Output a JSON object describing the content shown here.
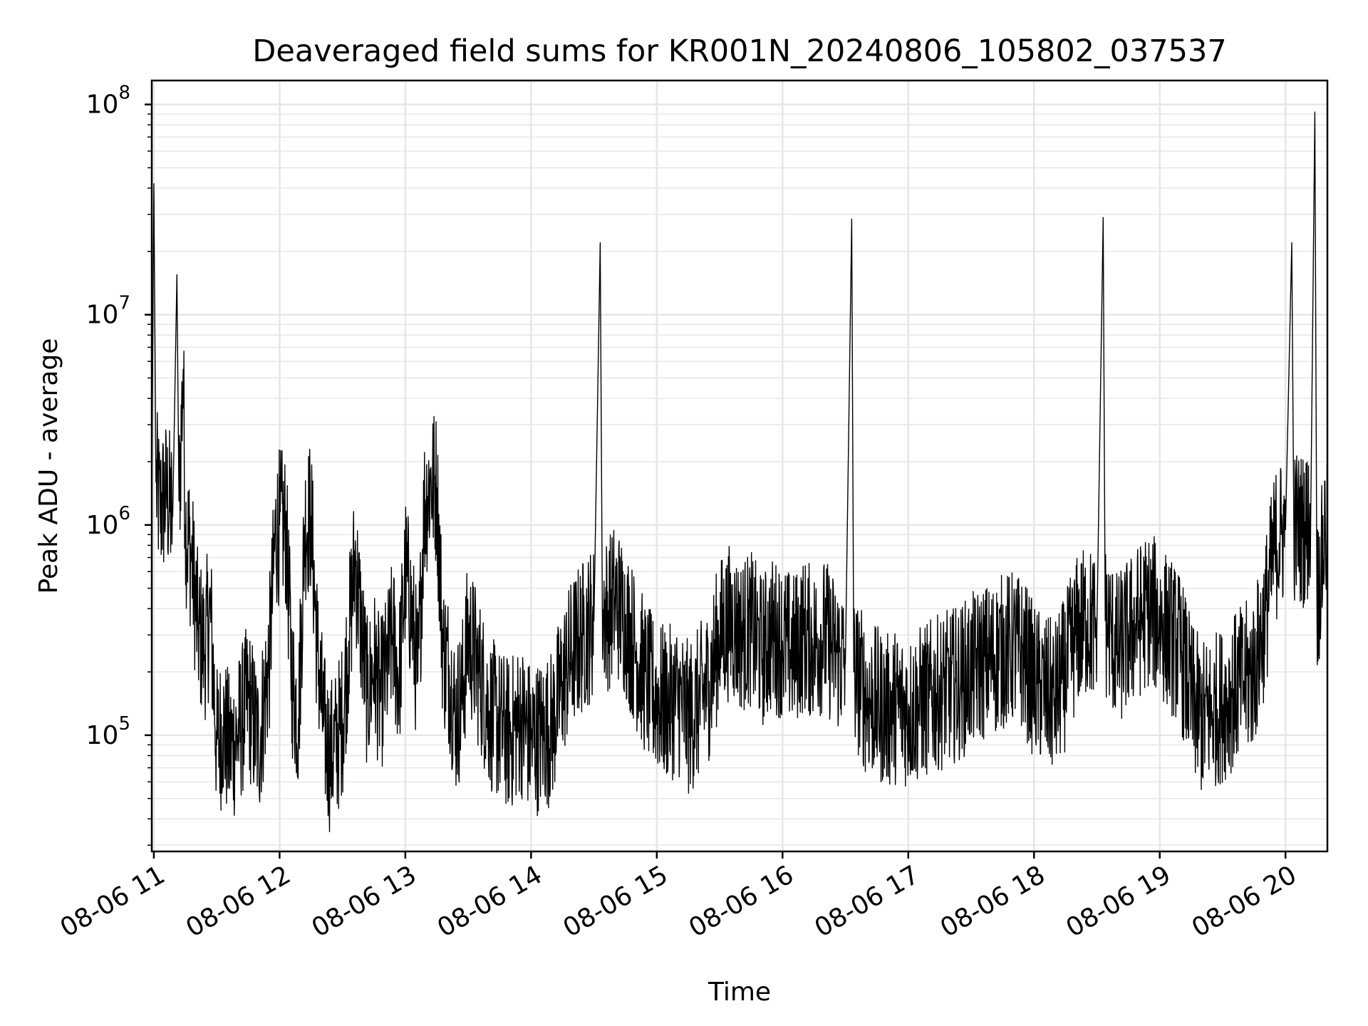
{
  "chart_data": {
    "type": "line",
    "title": "Deaveraged field sums for KR001N_20240806_105802_037537",
    "xlabel": "Time",
    "ylabel": "Peak ADU - average",
    "yscale": "log",
    "ylim": [
      28000,
      130000000
    ],
    "xlim": [
      "08-06 10:59",
      "08-06 20:20"
    ],
    "xticks": [
      {
        "time": "08-06 11:00",
        "label": "08-06 11"
      },
      {
        "time": "08-06 12:00",
        "label": "08-06 12"
      },
      {
        "time": "08-06 13:00",
        "label": "08-06 13"
      },
      {
        "time": "08-06 14:00",
        "label": "08-06 14"
      },
      {
        "time": "08-06 15:00",
        "label": "08-06 15"
      },
      {
        "time": "08-06 16:00",
        "label": "08-06 16"
      },
      {
        "time": "08-06 17:00",
        "label": "08-06 17"
      },
      {
        "time": "08-06 18:00",
        "label": "08-06 18"
      },
      {
        "time": "08-06 19:00",
        "label": "08-06 19"
      },
      {
        "time": "08-06 20:00",
        "label": "08-06 20"
      }
    ],
    "yticks": [
      {
        "value": 100000,
        "base": "10",
        "exp": "5"
      },
      {
        "value": 1000000,
        "base": "10",
        "exp": "6"
      },
      {
        "value": 10000000,
        "base": "10",
        "exp": "7"
      },
      {
        "value": 100000000,
        "base": "10",
        "exp": "8"
      }
    ],
    "grid": true,
    "line_color": "#000000",
    "grid_color": "#e6e6e6",
    "series": [
      {
        "points": [
          [
            "08-06 10:59",
            1300000
          ],
          [
            "08-06 11:00",
            42000000
          ],
          [
            "08-06 11:01",
            1600000
          ],
          [
            "08-06 11:03",
            1200000
          ],
          [
            "08-06 11:06",
            1400000
          ],
          [
            "08-06 11:09",
            1100000
          ],
          [
            "08-06 11:11",
            15500000
          ],
          [
            "08-06 11:12",
            1300000
          ],
          [
            "08-06 11:14",
            5500000
          ],
          [
            "08-06 11:15",
            1000000
          ],
          [
            "08-06 11:18",
            700000
          ],
          [
            "08-06 11:21",
            320000
          ],
          [
            "08-06 11:24",
            260000
          ],
          [
            "08-06 11:27",
            380000
          ],
          [
            "08-06 11:30",
            90000
          ],
          [
            "08-06 11:33",
            110000
          ],
          [
            "08-06 11:36",
            85000
          ],
          [
            "08-06 11:40",
            100000
          ],
          [
            "08-06 11:45",
            150000
          ],
          [
            "08-06 11:50",
            90000
          ],
          [
            "08-06 11:55",
            220000
          ],
          [
            "08-06 11:58",
            900000
          ],
          [
            "08-06 12:00",
            1000000
          ],
          [
            "08-06 12:03",
            950000
          ],
          [
            "08-06 12:06",
            180000
          ],
          [
            "08-06 12:09",
            120000
          ],
          [
            "08-06 12:12",
            1000000
          ],
          [
            "08-06 12:15",
            1100000
          ],
          [
            "08-06 12:18",
            250000
          ],
          [
            "08-06 12:21",
            110000
          ],
          [
            "08-06 12:24",
            80000
          ],
          [
            "08-06 12:27",
            90000
          ],
          [
            "08-06 12:30",
            120000
          ],
          [
            "08-06 12:33",
            280000
          ],
          [
            "08-06 12:36",
            700000
          ],
          [
            "08-06 12:39",
            320000
          ],
          [
            "08-06 12:42",
            150000
          ],
          [
            "08-06 12:45",
            220000
          ],
          [
            "08-06 12:48",
            150000
          ],
          [
            "08-06 12:51",
            200000
          ],
          [
            "08-06 12:54",
            300000
          ],
          [
            "08-06 12:57",
            180000
          ],
          [
            "08-06 13:00",
            600000
          ],
          [
            "08-06 13:03",
            380000
          ],
          [
            "08-06 13:06",
            180000
          ],
          [
            "08-06 13:09",
            1200000
          ],
          [
            "08-06 13:12",
            1600000
          ],
          [
            "08-06 13:15",
            1500000
          ],
          [
            "08-06 13:18",
            250000
          ],
          [
            "08-06 13:21",
            200000
          ],
          [
            "08-06 13:24",
            120000
          ],
          [
            "08-06 13:27",
            150000
          ],
          [
            "08-06 13:30",
            300000
          ],
          [
            "08-06 13:35",
            200000
          ],
          [
            "08-06 13:40",
            130000
          ],
          [
            "08-06 13:45",
            110000
          ],
          [
            "08-06 13:50",
            100000
          ],
          [
            "08-06 13:55",
            120000
          ],
          [
            "08-06 14:00",
            95000
          ],
          [
            "08-06 14:05",
            100000
          ],
          [
            "08-06 14:10",
            110000
          ],
          [
            "08-06 14:15",
            180000
          ],
          [
            "08-06 14:20",
            250000
          ],
          [
            "08-06 14:25",
            300000
          ],
          [
            "08-06 14:30",
            350000
          ],
          [
            "08-06 14:33",
            22000000
          ],
          [
            "08-06 14:34",
            400000
          ],
          [
            "08-06 14:37",
            380000
          ],
          [
            "08-06 14:40",
            450000
          ],
          [
            "08-06 14:45",
            350000
          ],
          [
            "08-06 14:50",
            250000
          ],
          [
            "08-06 14:55",
            180000
          ],
          [
            "08-06 15:00",
            150000
          ],
          [
            "08-06 15:05",
            140000
          ],
          [
            "08-06 15:10",
            150000
          ],
          [
            "08-06 15:15",
            120000
          ],
          [
            "08-06 15:20",
            140000
          ],
          [
            "08-06 15:25",
            180000
          ],
          [
            "08-06 15:30",
            300000
          ],
          [
            "08-06 15:35",
            350000
          ],
          [
            "08-06 15:40",
            300000
          ],
          [
            "08-06 15:45",
            320000
          ],
          [
            "08-06 15:50",
            250000
          ],
          [
            "08-06 15:55",
            300000
          ],
          [
            "08-06 16:00",
            280000
          ],
          [
            "08-06 16:05",
            250000
          ],
          [
            "08-06 16:10",
            300000
          ],
          [
            "08-06 16:15",
            270000
          ],
          [
            "08-06 16:20",
            300000
          ],
          [
            "08-06 16:25",
            250000
          ],
          [
            "08-06 16:30",
            220000
          ],
          [
            "08-06 16:33",
            28500000
          ],
          [
            "08-06 16:34",
            200000
          ],
          [
            "08-06 16:37",
            180000
          ],
          [
            "08-06 16:40",
            150000
          ],
          [
            "08-06 16:45",
            140000
          ],
          [
            "08-06 16:50",
            130000
          ],
          [
            "08-06 16:55",
            140000
          ],
          [
            "08-06 17:00",
            130000
          ],
          [
            "08-06 17:05",
            140000
          ],
          [
            "08-06 17:10",
            150000
          ],
          [
            "08-06 17:15",
            160000
          ],
          [
            "08-06 17:20",
            170000
          ],
          [
            "08-06 17:25",
            180000
          ],
          [
            "08-06 17:30",
            200000
          ],
          [
            "08-06 17:35",
            220000
          ],
          [
            "08-06 17:40",
            230000
          ],
          [
            "08-06 17:45",
            250000
          ],
          [
            "08-06 17:50",
            260000
          ],
          [
            "08-06 17:55",
            240000
          ],
          [
            "08-06 18:00",
            180000
          ],
          [
            "08-06 18:05",
            160000
          ],
          [
            "08-06 18:10",
            150000
          ],
          [
            "08-06 18:15",
            200000
          ],
          [
            "08-06 18:20",
            300000
          ],
          [
            "08-06 18:25",
            350000
          ],
          [
            "08-06 18:30",
            320000
          ],
          [
            "08-06 18:33",
            29000000
          ],
          [
            "08-06 18:34",
            350000
          ],
          [
            "08-06 18:37",
            300000
          ],
          [
            "08-06 18:40",
            250000
          ],
          [
            "08-06 18:45",
            300000
          ],
          [
            "08-06 18:50",
            350000
          ],
          [
            "08-06 18:55",
            400000
          ],
          [
            "08-06 19:00",
            350000
          ],
          [
            "08-06 19:05",
            300000
          ],
          [
            "08-06 19:10",
            250000
          ],
          [
            "08-06 19:15",
            150000
          ],
          [
            "08-06 19:20",
            120000
          ],
          [
            "08-06 19:25",
            130000
          ],
          [
            "08-06 19:30",
            140000
          ],
          [
            "08-06 19:35",
            160000
          ],
          [
            "08-06 19:40",
            180000
          ],
          [
            "08-06 19:45",
            200000
          ],
          [
            "08-06 19:50",
            350000
          ],
          [
            "08-06 19:55",
            800000
          ],
          [
            "08-06 19:58",
            900000
          ],
          [
            "08-06 20:00",
            950000
          ],
          [
            "08-06 20:03",
            22000000
          ],
          [
            "08-06 20:04",
            1000000
          ],
          [
            "08-06 20:08",
            950000
          ],
          [
            "08-06 20:12",
            1000000
          ],
          [
            "08-06 20:14",
            92000000
          ],
          [
            "08-06 20:15",
            450000
          ],
          [
            "08-06 20:17",
            600000
          ],
          [
            "08-06 20:19",
            1000000
          ],
          [
            "08-06 20:20",
            800000
          ]
        ]
      }
    ]
  }
}
